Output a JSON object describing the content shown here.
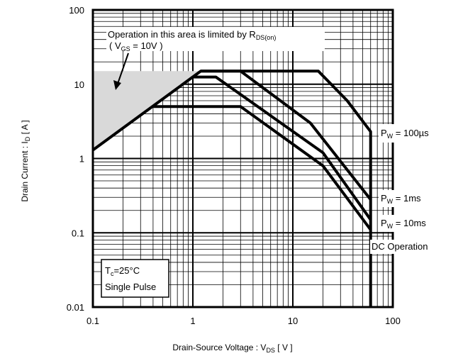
{
  "chart_data": {
    "type": "line",
    "title": "",
    "xlabel": {
      "main": "Drain-Source  Voltage : V",
      "sub": "DS",
      "unit": " [ V ]"
    },
    "ylabel": {
      "main": "Drain  Current  :  I",
      "sub": "D",
      "unit": "  [ A ]"
    },
    "x_scale": "log",
    "y_scale": "log",
    "xlim": [
      0.1,
      100
    ],
    "ylim": [
      0.01,
      100
    ],
    "x_ticks": [
      {
        "value": 0.1,
        "label": "0.1"
      },
      {
        "value": 1,
        "label": "1"
      },
      {
        "value": 10,
        "label": "10"
      },
      {
        "value": 100,
        "label": "100"
      }
    ],
    "y_ticks": [
      {
        "value": 0.01,
        "label": "0.01"
      },
      {
        "value": 0.1,
        "label": "0.1"
      },
      {
        "value": 1,
        "label": "1"
      },
      {
        "value": 10,
        "label": "10"
      },
      {
        "value": 100,
        "label": "100"
      }
    ],
    "grid": true,
    "series": [
      {
        "name": "PW = 100µs",
        "points": [
          [
            0.1,
            1.3
          ],
          [
            1.2,
            15
          ],
          [
            18,
            15
          ],
          [
            35,
            6
          ],
          [
            60,
            2.3
          ],
          [
            60,
            0.01
          ]
        ]
      },
      {
        "name": "PW = 1ms",
        "points": [
          [
            1.2,
            15
          ],
          [
            3,
            15
          ],
          [
            15,
            3
          ],
          [
            60,
            0.28
          ]
        ]
      },
      {
        "name": "PW = 10ms",
        "points": [
          [
            1,
            12.5
          ],
          [
            1.7,
            12.5
          ],
          [
            20,
            1.2
          ],
          [
            60,
            0.15
          ]
        ]
      },
      {
        "name": "DC Operation",
        "points": [
          [
            0.4,
            5
          ],
          [
            3,
            5
          ],
          [
            20,
            0.8
          ],
          [
            60,
            0.11
          ]
        ]
      }
    ],
    "limited_region": {
      "points": [
        [
          0.1,
          15
        ],
        [
          1.2,
          15
        ],
        [
          0.1,
          1.3
        ]
      ],
      "color": "#d9d9d9"
    },
    "annotations": {
      "rds_note": {
        "line1_main": "Operation in this area is limited by R",
        "line1_sub": "DS(on)",
        "line2_pre": "( V",
        "line2_sub": "GS",
        "line2_post": " = 10V )"
      },
      "pw_100us": {
        "pre": "P",
        "sub": "W",
        "post": " = 100µs"
      },
      "pw_1ms": {
        "pre": "P",
        "sub": "W",
        "post": " = 1ms"
      },
      "pw_10ms": {
        "pre": "P",
        "sub": "W",
        "post": " = 10ms"
      },
      "dc_operation": "DC Operation",
      "conditions": {
        "tc_pre": "T",
        "tc_sub": "c",
        "tc_post": "=25°C",
        "pulse": "Single Pulse"
      }
    },
    "colors": {
      "curve": "#000000",
      "grid": "#000000",
      "shade": "#d9d9d9"
    }
  }
}
